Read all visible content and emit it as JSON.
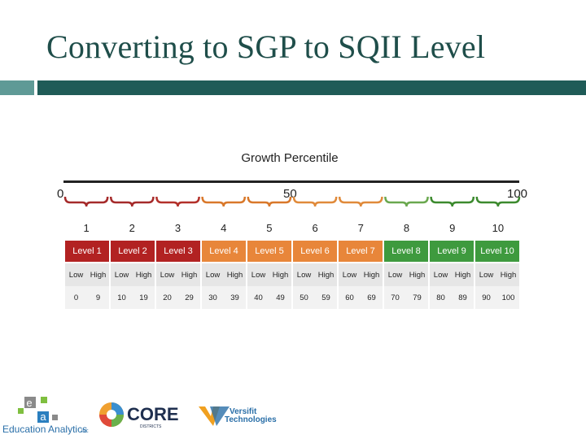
{
  "slide": {
    "title": "Converting to SGP to SQII Level"
  },
  "scale": {
    "title": "Growth Percentile",
    "min_label": "0",
    "mid_label": "50",
    "max_label": "100"
  },
  "brackets": [
    {
      "number": "1",
      "color": "#a52a2a"
    },
    {
      "number": "2",
      "color": "#a52a2a"
    },
    {
      "number": "3",
      "color": "#b3302a"
    },
    {
      "number": "4",
      "color": "#d9782a"
    },
    {
      "number": "5",
      "color": "#d9782a"
    },
    {
      "number": "6",
      "color": "#e08a3a"
    },
    {
      "number": "7",
      "color": "#e08a3a"
    },
    {
      "number": "8",
      "color": "#6aa84f"
    },
    {
      "number": "9",
      "color": "#3c8a2e"
    },
    {
      "number": "10",
      "color": "#3c8a2e"
    }
  ],
  "levels": [
    {
      "label": "Level 1",
      "color": "#b22222",
      "low_label": "Low",
      "high_label": "High",
      "low": "0",
      "high": "9"
    },
    {
      "label": "Level 2",
      "color": "#b22222",
      "low_label": "Low",
      "high_label": "High",
      "low": "10",
      "high": "19"
    },
    {
      "label": "Level 3",
      "color": "#b22222",
      "low_label": "Low",
      "high_label": "High",
      "low": "20",
      "high": "29"
    },
    {
      "label": "Level 4",
      "color": "#e8863a",
      "low_label": "Low",
      "high_label": "High",
      "low": "30",
      "high": "39"
    },
    {
      "label": "Level 5",
      "color": "#e8863a",
      "low_label": "Low",
      "high_label": "High",
      "low": "40",
      "high": "49"
    },
    {
      "label": "Level 6",
      "color": "#e8863a",
      "low_label": "Low",
      "high_label": "High",
      "low": "50",
      "high": "59"
    },
    {
      "label": "Level 7",
      "color": "#e8863a",
      "low_label": "Low",
      "high_label": "High",
      "low": "60",
      "high": "69"
    },
    {
      "label": "Level 8",
      "color": "#3e9a3e",
      "low_label": "Low",
      "high_label": "High",
      "low": "70",
      "high": "79"
    },
    {
      "label": "Level 9",
      "color": "#3e9a3e",
      "low_label": "Low",
      "high_label": "High",
      "low": "80",
      "high": "89"
    },
    {
      "label": "Level 10",
      "color": "#3e9a3e",
      "low_label": "Low",
      "high_label": "High",
      "low": "90",
      "high": "100"
    }
  ],
  "logos": {
    "ea_text": "Education Analytics",
    "ea_suffix": "INC",
    "core_text": "CORE",
    "core_sub": "DISTRICTS",
    "versifit_line1": "Versifit",
    "versifit_line2": "Technologies"
  }
}
